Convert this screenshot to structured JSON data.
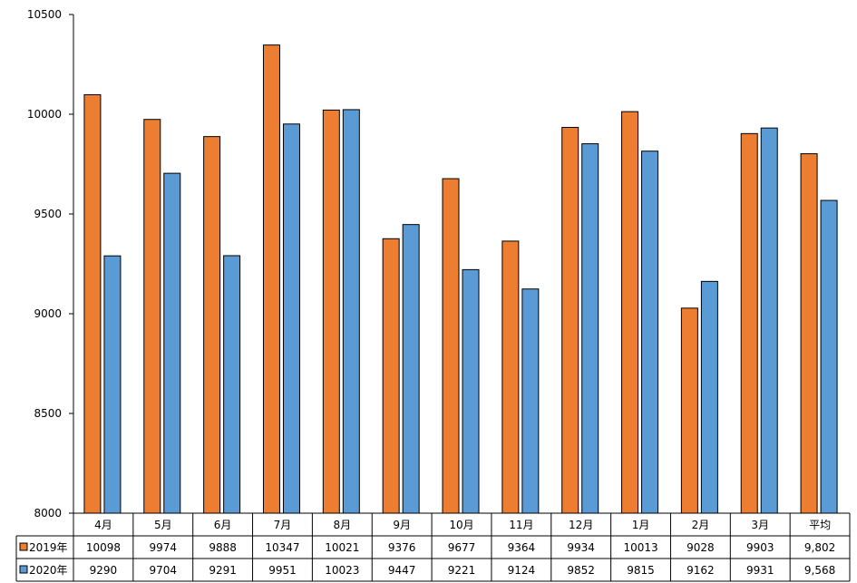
{
  "chart_data": {
    "type": "bar",
    "categories": [
      "4月",
      "5月",
      "6月",
      "7月",
      "8月",
      "9月",
      "10月",
      "11月",
      "12月",
      "1月",
      "2月",
      "3月",
      "平均"
    ],
    "series": [
      {
        "name": "2019年",
        "color": "#ED7D31",
        "values": [
          10098,
          9974,
          9888,
          10347,
          10021,
          9376,
          9677,
          9364,
          9934,
          10013,
          9028,
          9903,
          9802
        ],
        "display": [
          "10098",
          "9974",
          "9888",
          "10347",
          "10021",
          "9376",
          "9677",
          "9364",
          "9934",
          "10013",
          "9028",
          "9903",
          "9,802"
        ]
      },
      {
        "name": "2020年",
        "color": "#5B9BD5",
        "values": [
          9290,
          9704,
          9291,
          9951,
          10023,
          9447,
          9221,
          9124,
          9852,
          9815,
          9162,
          9931,
          9568
        ],
        "display": [
          "9290",
          "9704",
          "9291",
          "9951",
          "10023",
          "9447",
          "9221",
          "9124",
          "9852",
          "9815",
          "9162",
          "9931",
          "9,568"
        ]
      }
    ],
    "ylim": [
      8000,
      10500
    ],
    "yticks": [
      "8000",
      "8500",
      "9000",
      "9500",
      "10000",
      "10500"
    ],
    "grid": false,
    "legend": "data-table"
  }
}
